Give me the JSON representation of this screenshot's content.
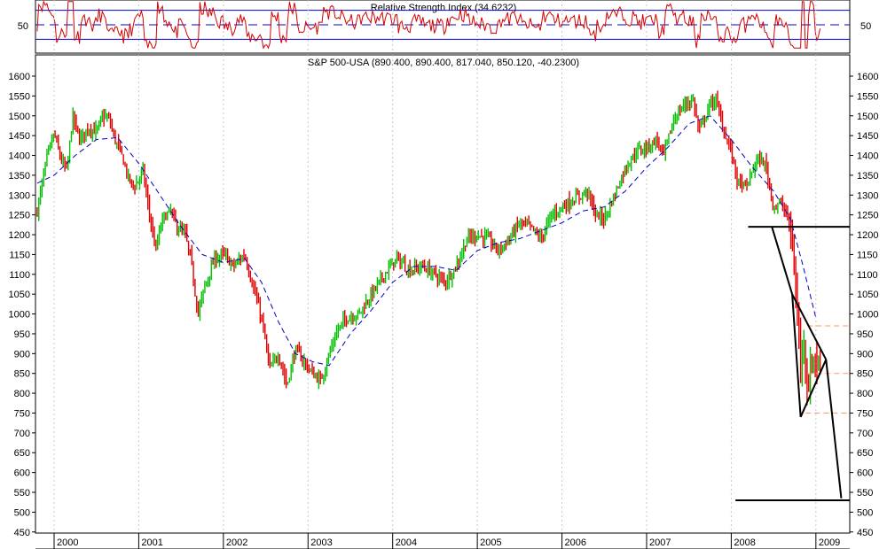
{
  "chart_data": {
    "type": "candlestick",
    "rsi_panel": {
      "title": "Relative Strength Index (34.6232)",
      "level_label": "50",
      "reference_levels": [
        50,
        70,
        30
      ]
    },
    "price_panel": {
      "title": "S&P 500-USA (890.400, 890.400, 817.040, 850.120, -40.2300)",
      "ylim": [
        400,
        1650
      ],
      "y_ticks": [
        "1600",
        "1550",
        "1500",
        "1450",
        "1400",
        "1350",
        "1300",
        "1250",
        "1200",
        "1150",
        "1100",
        "1050",
        "1000",
        "950",
        "900",
        "850",
        "800",
        "750",
        "700",
        "650",
        "600",
        "550",
        "500",
        "450"
      ],
      "x_ticks": [
        "2000",
        "2001",
        "2002",
        "2003",
        "2004",
        "2005",
        "2006",
        "2007",
        "2008",
        "2009"
      ],
      "close_series": [
        {
          "t": 1999.8,
          "v": 1260
        },
        {
          "t": 1999.92,
          "v": 1400
        },
        {
          "t": 2000.0,
          "v": 1455
        },
        {
          "t": 2000.08,
          "v": 1390
        },
        {
          "t": 2000.15,
          "v": 1360
        },
        {
          "t": 2000.22,
          "v": 1500
        },
        {
          "t": 2000.3,
          "v": 1440
        },
        {
          "t": 2000.4,
          "v": 1470
        },
        {
          "t": 2000.5,
          "v": 1460
        },
        {
          "t": 2000.58,
          "v": 1500
        },
        {
          "t": 2000.65,
          "v": 1490
        },
        {
          "t": 2000.72,
          "v": 1440
        },
        {
          "t": 2000.8,
          "v": 1400
        },
        {
          "t": 2000.88,
          "v": 1340
        },
        {
          "t": 2000.95,
          "v": 1320
        },
        {
          "t": 2001.05,
          "v": 1360
        },
        {
          "t": 2001.12,
          "v": 1260
        },
        {
          "t": 2001.2,
          "v": 1160
        },
        {
          "t": 2001.28,
          "v": 1240
        },
        {
          "t": 2001.38,
          "v": 1260
        },
        {
          "t": 2001.45,
          "v": 1220
        },
        {
          "t": 2001.55,
          "v": 1200
        },
        {
          "t": 2001.62,
          "v": 1130
        },
        {
          "t": 2001.7,
          "v": 1000
        },
        {
          "t": 2001.78,
          "v": 1070
        },
        {
          "t": 2001.9,
          "v": 1140
        },
        {
          "t": 2002.0,
          "v": 1150
        },
        {
          "t": 2002.12,
          "v": 1120
        },
        {
          "t": 2002.25,
          "v": 1150
        },
        {
          "t": 2002.35,
          "v": 1070
        },
        {
          "t": 2002.45,
          "v": 990
        },
        {
          "t": 2002.55,
          "v": 860
        },
        {
          "t": 2002.65,
          "v": 900
        },
        {
          "t": 2002.75,
          "v": 820
        },
        {
          "t": 2002.85,
          "v": 910
        },
        {
          "t": 2002.95,
          "v": 880
        },
        {
          "t": 2003.05,
          "v": 850
        },
        {
          "t": 2003.15,
          "v": 830
        },
        {
          "t": 2003.25,
          "v": 900
        },
        {
          "t": 2003.35,
          "v": 960
        },
        {
          "t": 2003.45,
          "v": 990
        },
        {
          "t": 2003.6,
          "v": 1000
        },
        {
          "t": 2003.75,
          "v": 1050
        },
        {
          "t": 2003.9,
          "v": 1100
        },
        {
          "t": 2004.05,
          "v": 1140
        },
        {
          "t": 2004.2,
          "v": 1110
        },
        {
          "t": 2004.35,
          "v": 1120
        },
        {
          "t": 2004.5,
          "v": 1100
        },
        {
          "t": 2004.62,
          "v": 1080
        },
        {
          "t": 2004.75,
          "v": 1120
        },
        {
          "t": 2004.88,
          "v": 1190
        },
        {
          "t": 2005.0,
          "v": 1200
        },
        {
          "t": 2005.12,
          "v": 1190
        },
        {
          "t": 2005.25,
          "v": 1160
        },
        {
          "t": 2005.38,
          "v": 1190
        },
        {
          "t": 2005.5,
          "v": 1230
        },
        {
          "t": 2005.62,
          "v": 1220
        },
        {
          "t": 2005.75,
          "v": 1190
        },
        {
          "t": 2005.88,
          "v": 1250
        },
        {
          "t": 2006.0,
          "v": 1270
        },
        {
          "t": 2006.15,
          "v": 1290
        },
        {
          "t": 2006.3,
          "v": 1310
        },
        {
          "t": 2006.4,
          "v": 1250
        },
        {
          "t": 2006.5,
          "v": 1240
        },
        {
          "t": 2006.62,
          "v": 1300
        },
        {
          "t": 2006.75,
          "v": 1370
        },
        {
          "t": 2006.88,
          "v": 1410
        },
        {
          "t": 2007.0,
          "v": 1420
        },
        {
          "t": 2007.12,
          "v": 1440
        },
        {
          "t": 2007.2,
          "v": 1400
        },
        {
          "t": 2007.32,
          "v": 1490
        },
        {
          "t": 2007.45,
          "v": 1530
        },
        {
          "t": 2007.55,
          "v": 1540
        },
        {
          "t": 2007.62,
          "v": 1460
        },
        {
          "t": 2007.75,
          "v": 1530
        },
        {
          "t": 2007.82,
          "v": 1540
        },
        {
          "t": 2007.9,
          "v": 1470
        },
        {
          "t": 2008.0,
          "v": 1410
        },
        {
          "t": 2008.08,
          "v": 1330
        },
        {
          "t": 2008.18,
          "v": 1320
        },
        {
          "t": 2008.3,
          "v": 1390
        },
        {
          "t": 2008.4,
          "v": 1380
        },
        {
          "t": 2008.5,
          "v": 1270
        },
        {
          "t": 2008.58,
          "v": 1280
        },
        {
          "t": 2008.66,
          "v": 1250
        },
        {
          "t": 2008.72,
          "v": 1180
        },
        {
          "t": 2008.78,
          "v": 1000
        },
        {
          "t": 2008.82,
          "v": 880
        },
        {
          "t": 2008.86,
          "v": 950
        },
        {
          "t": 2008.9,
          "v": 800
        },
        {
          "t": 2008.94,
          "v": 860
        },
        {
          "t": 2008.98,
          "v": 900
        },
        {
          "t": 2009.02,
          "v": 870
        },
        {
          "t": 2009.06,
          "v": 850
        }
      ],
      "moving_average": [
        {
          "t": 1999.8,
          "v": 1330
        },
        {
          "t": 2000.0,
          "v": 1350
        },
        {
          "t": 2000.25,
          "v": 1400
        },
        {
          "t": 2000.5,
          "v": 1440
        },
        {
          "t": 2000.75,
          "v": 1445
        },
        {
          "t": 2001.0,
          "v": 1380
        },
        {
          "t": 2001.25,
          "v": 1300
        },
        {
          "t": 2001.5,
          "v": 1220
        },
        {
          "t": 2001.75,
          "v": 1150
        },
        {
          "t": 2002.0,
          "v": 1130
        },
        {
          "t": 2002.25,
          "v": 1140
        },
        {
          "t": 2002.45,
          "v": 1080
        },
        {
          "t": 2002.65,
          "v": 980
        },
        {
          "t": 2002.85,
          "v": 900
        },
        {
          "t": 2003.05,
          "v": 880
        },
        {
          "t": 2003.25,
          "v": 870
        },
        {
          "t": 2003.5,
          "v": 950
        },
        {
          "t": 2003.75,
          "v": 1010
        },
        {
          "t": 2004.0,
          "v": 1080
        },
        {
          "t": 2004.25,
          "v": 1120
        },
        {
          "t": 2004.5,
          "v": 1120
        },
        {
          "t": 2004.75,
          "v": 1110
        },
        {
          "t": 2005.0,
          "v": 1160
        },
        {
          "t": 2005.25,
          "v": 1180
        },
        {
          "t": 2005.5,
          "v": 1190
        },
        {
          "t": 2005.75,
          "v": 1210
        },
        {
          "t": 2006.0,
          "v": 1230
        },
        {
          "t": 2006.25,
          "v": 1260
        },
        {
          "t": 2006.5,
          "v": 1270
        },
        {
          "t": 2006.75,
          "v": 1310
        },
        {
          "t": 2007.0,
          "v": 1370
        },
        {
          "t": 2007.25,
          "v": 1420
        },
        {
          "t": 2007.5,
          "v": 1480
        },
        {
          "t": 2007.75,
          "v": 1500
        },
        {
          "t": 2008.0,
          "v": 1440
        },
        {
          "t": 2008.25,
          "v": 1370
        },
        {
          "t": 2008.5,
          "v": 1310
        },
        {
          "t": 2008.7,
          "v": 1240
        },
        {
          "t": 2008.85,
          "v": 1120
        },
        {
          "t": 2009.0,
          "v": 990
        }
      ],
      "annotations": {
        "horizontal_lines": [
          {
            "y": 1220,
            "t_start": 2008.2,
            "t_end": 2009.4
          },
          {
            "y": 530,
            "t_start": 2008.05,
            "t_end": 2009.6
          }
        ],
        "dashed_levels": [
          {
            "y": 970,
            "t_start": 2008.9,
            "t_end": 2009.4
          },
          {
            "y": 850,
            "t_start": 2008.9,
            "t_end": 2009.4
          },
          {
            "y": 750,
            "t_start": 2008.88,
            "t_end": 2009.4
          }
        ],
        "trend_lines": [
          {
            "t1": 2008.48,
            "v1": 1220,
            "t2": 2008.72,
            "v2": 1050
          },
          {
            "t1": 2008.72,
            "v1": 1050,
            "t2": 2008.82,
            "v2": 740
          },
          {
            "t1": 2008.72,
            "v1": 1050,
            "t2": 2009.12,
            "v2": 885
          },
          {
            "t1": 2008.82,
            "v1": 740,
            "t2": 2009.12,
            "v2": 885
          },
          {
            "t1": 2009.12,
            "v1": 885,
            "t2": 2009.3,
            "v2": 535
          }
        ]
      }
    },
    "colors": {
      "up": "#00c000",
      "down": "#e00000",
      "ma": "#0000cc",
      "rsi": "#d40000",
      "rsi_levels": "#0000cc",
      "annotation": "#000000",
      "dashed_level": "#ff9966",
      "grid": "#c8c8c8"
    }
  }
}
